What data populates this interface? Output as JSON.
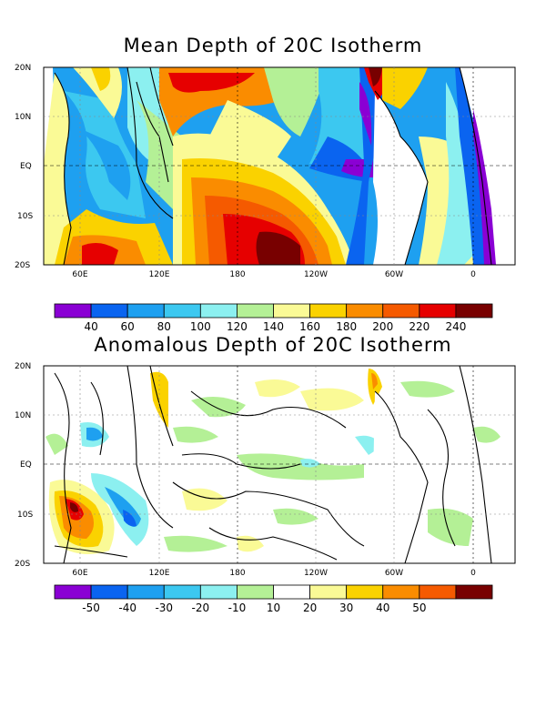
{
  "panels": [
    {
      "title": "Mean Depth of 20C Isotherm",
      "lat_labels": [
        "20N",
        "10N",
        "EQ",
        "10S",
        "20S"
      ],
      "lon_labels": [
        "60E",
        "120E",
        "180",
        "120W",
        "60W",
        "0"
      ],
      "colorbar": {
        "labels": [
          "40",
          "60",
          "80",
          "100",
          "120",
          "140",
          "160",
          "180",
          "200",
          "220",
          "240"
        ],
        "colors": [
          "#8a00d4",
          "#0a64f0",
          "#1ea0f0",
          "#3cc8f0",
          "#8cf0f0",
          "#b4f096",
          "#fafa96",
          "#fad200",
          "#fa8c00",
          "#f55a00",
          "#e60000",
          "#780000"
        ]
      }
    },
    {
      "title": "Anomalous Depth of 20C Isotherm",
      "lat_labels": [
        "20N",
        "10N",
        "EQ",
        "10S",
        "20S"
      ],
      "lon_labels": [
        "60E",
        "120E",
        "180",
        "120W",
        "60W",
        "0"
      ],
      "colorbar": {
        "labels": [
          "-50",
          "-40",
          "-30",
          "-20",
          "-10",
          "10",
          "20",
          "30",
          "40",
          "50"
        ],
        "colors": [
          "#8a00d4",
          "#0a64f0",
          "#1ea0f0",
          "#3cc8f0",
          "#8cf0f0",
          "#b4f096",
          "#ffffff",
          "#fafa96",
          "#fad200",
          "#fa8c00",
          "#f55a00",
          "#780000"
        ]
      }
    }
  ]
}
